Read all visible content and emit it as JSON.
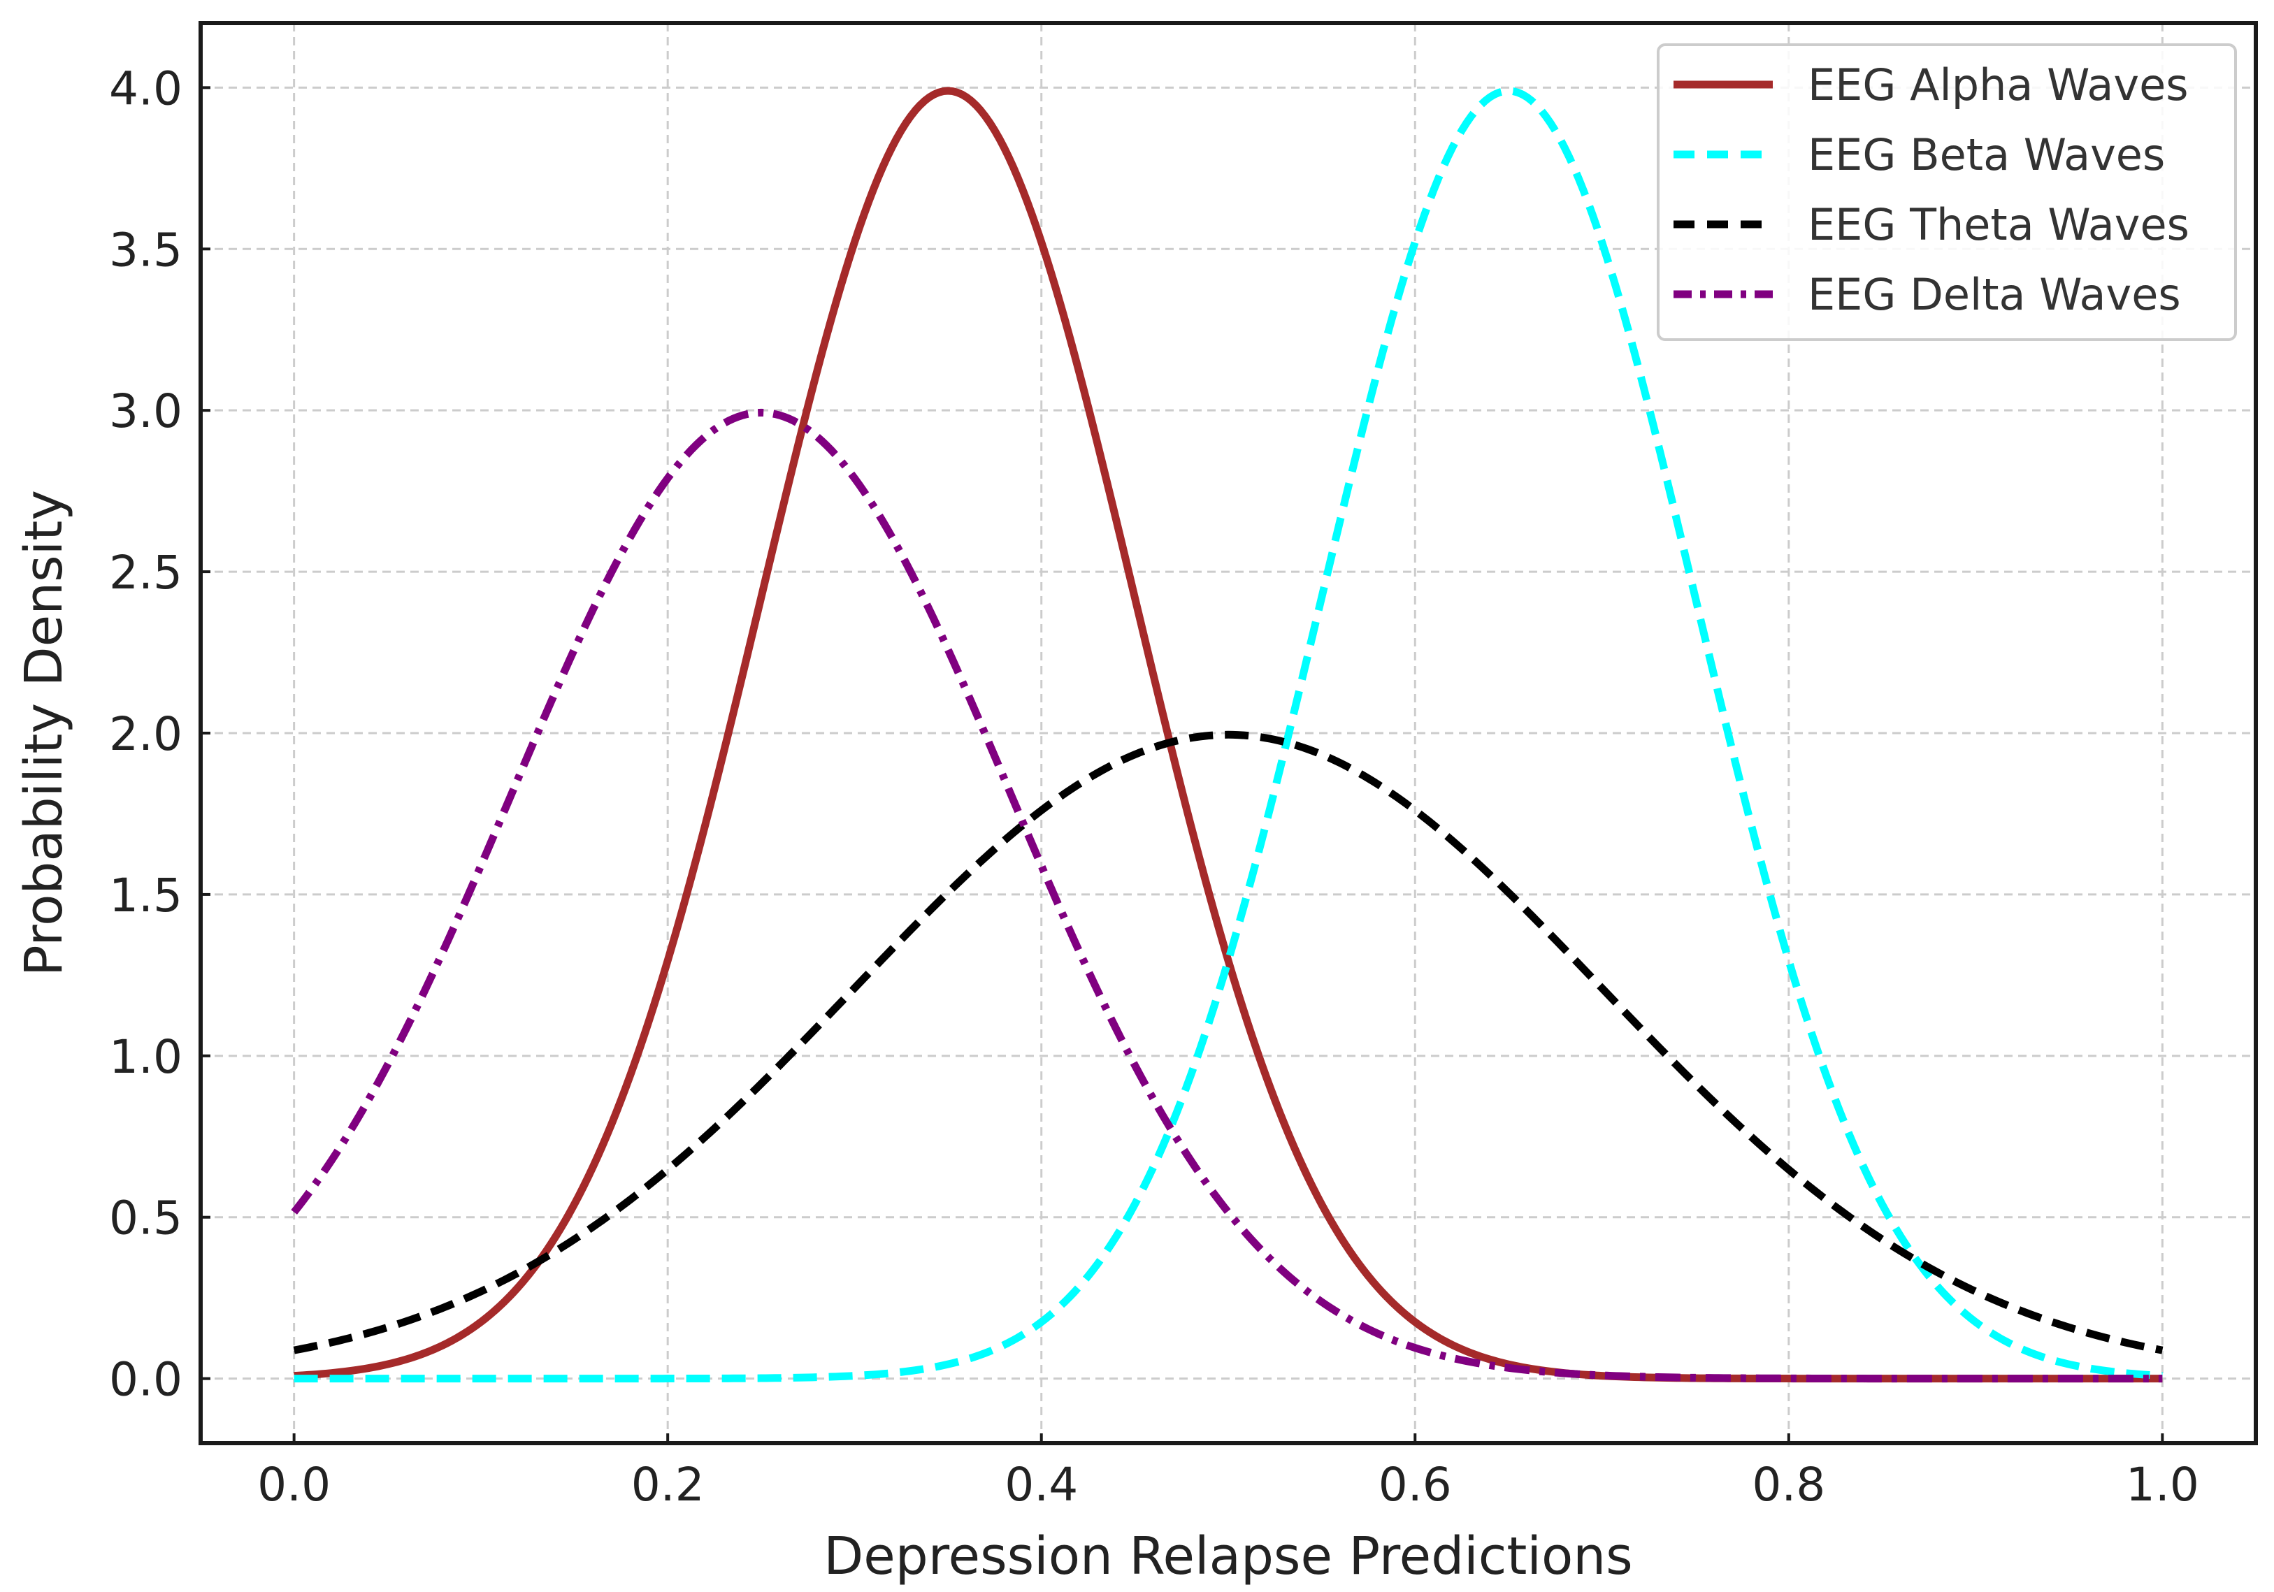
{
  "chart_data": {
    "type": "line",
    "title": "",
    "xlabel": "Depression Relapse Predictions",
    "ylabel": "Probability Density",
    "xlim": [
      -0.05,
      1.05
    ],
    "ylim": [
      -0.2,
      4.2
    ],
    "x_ticks": [
      0.0,
      0.2,
      0.4,
      0.6,
      0.8,
      1.0
    ],
    "x_tick_labels": [
      "0.0",
      "0.2",
      "0.4",
      "0.6",
      "0.8",
      "1.0"
    ],
    "y_ticks": [
      0.0,
      0.5,
      1.0,
      1.5,
      2.0,
      2.5,
      3.0,
      3.5,
      4.0
    ],
    "y_tick_labels": [
      "0.0",
      "0.5",
      "1.0",
      "1.5",
      "2.0",
      "2.5",
      "3.0",
      "3.5",
      "4.0"
    ],
    "grid": true,
    "legend_position": "top-right",
    "x_range": [
      0.0,
      1.0
    ],
    "series": [
      {
        "name": "EEG Alpha Waves",
        "color": "#a52a2a",
        "style": "solid",
        "distribution": "normal",
        "mean": 0.35,
        "std": 0.1,
        "peak": 3.99
      },
      {
        "name": "EEG Beta Waves",
        "color": "#00ffff",
        "style": "dashed",
        "distribution": "normal",
        "mean": 0.65,
        "std": 0.1,
        "peak": 3.99
      },
      {
        "name": "EEG Theta Waves",
        "color": "#000000",
        "style": "dashed",
        "distribution": "normal",
        "mean": 0.5,
        "std": 0.2,
        "peak": 1.995
      },
      {
        "name": "EEG Delta Waves",
        "color": "#800080",
        "style": "dashdot",
        "distribution": "normal",
        "mean": 0.25,
        "std": 0.1333,
        "peak": 2.993
      }
    ]
  }
}
